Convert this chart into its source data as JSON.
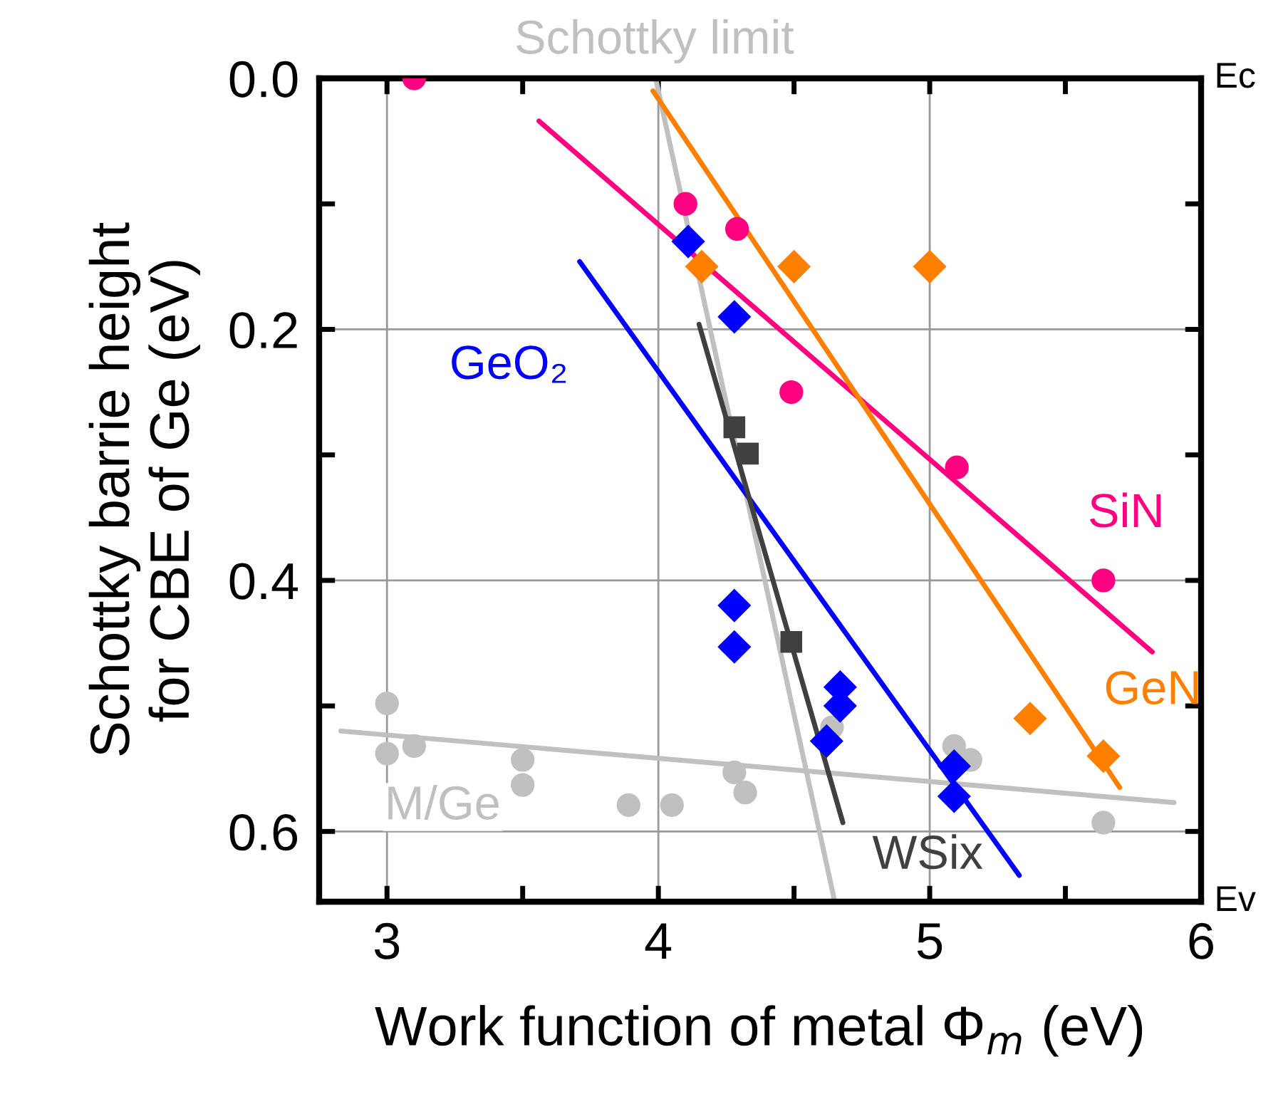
{
  "chart_data": {
    "type": "scatter",
    "xlabel": "Work function of metal Φ$_{m}$ (eV)",
    "ylabel": "Schottky barrie height\nfor CBE of Ge (eV)",
    "xlim": [
      2.75,
      6
    ],
    "ylim": [
      0.656,
      0
    ],
    "xticks": [
      3,
      {
        "value": 3.5,
        "label": null
      },
      4,
      {
        "value": 4.5,
        "label": null
      },
      5,
      {
        "value": 5.5,
        "label": null
      },
      6
    ],
    "yticks": [
      {
        "value": 0,
        "label": "0.0"
      },
      {
        "value": 0.1,
        "label": null
      },
      {
        "value": 0.2,
        "label": "0.2"
      },
      {
        "value": 0.3,
        "label": null
      },
      {
        "value": 0.4,
        "label": "0.4"
      },
      {
        "value": 0.5,
        "label": null
      },
      {
        "value": 0.6,
        "label": "0.6"
      }
    ],
    "grid": true,
    "series": [
      {
        "type": "line",
        "color": "#c0c0c0",
        "x": [
          3.99,
          4.65
        ],
        "values": [
          0,
          0.656
        ]
      },
      {
        "type": "line",
        "color": "#c0c0c0",
        "x": [
          2.83,
          5.9
        ],
        "values": [
          0.52,
          0.577
        ]
      },
      {
        "marker": "circle",
        "color": "#c0c0c0",
        "x": [
          3.0,
          3.0,
          3.1,
          3.5,
          3.5,
          3.89,
          4.05,
          4.28,
          4.32,
          4.64,
          5.09,
          5.15,
          5.64
        ],
        "values": [
          0.498,
          0.538,
          0.532,
          0.543,
          0.563,
          0.579,
          0.579,
          0.553,
          0.569,
          0.517,
          0.532,
          0.543,
          0.593
        ]
      },
      {
        "type": "line",
        "color": "#ff0080",
        "x": [
          3.56,
          5.82
        ],
        "values": [
          0.034,
          0.457
        ]
      },
      {
        "type": "line",
        "color": "#ff8000",
        "x": [
          3.98,
          5.7
        ],
        "values": [
          0.01,
          0.565
        ]
      },
      {
        "type": "line",
        "color": "#0000ff",
        "x": [
          3.71,
          5.33
        ],
        "values": [
          0.146,
          0.635
        ]
      },
      {
        "type": "line",
        "color": "#404040",
        "x": [
          4.15,
          4.68
        ],
        "values": [
          0.196,
          0.593
        ]
      },
      {
        "marker": "circle",
        "color": "#ff0080",
        "x": [
          3.1,
          4.1,
          4.29,
          4.49,
          5.1,
          5.64
        ],
        "values": [
          0,
          0.1,
          0.12,
          0.25,
          0.31,
          0.4
        ]
      },
      {
        "marker": "diamond",
        "color": "#ff8000",
        "x": [
          4.16,
          4.5,
          5.0,
          5.37,
          5.64
        ],
        "values": [
          0.15,
          0.15,
          0.15,
          0.51,
          0.54
        ]
      },
      {
        "marker": "diamond",
        "color": "#0000ff",
        "x": [
          4.11,
          4.28,
          4.28,
          4.28,
          4.67,
          4.67,
          4.62,
          5.09,
          5.09
        ],
        "values": [
          0.13,
          0.19,
          0.42,
          0.453,
          0.485,
          0.5,
          0.528,
          0.548,
          0.572
        ]
      },
      {
        "marker": "square",
        "color": "#404040",
        "x": [
          4.28,
          4.33,
          4.49
        ],
        "values": [
          0.278,
          0.299,
          0.449
        ]
      }
    ],
    "annotations": [
      "Schottky limit",
      "Ec",
      "Ev",
      "GeO₂",
      "SiN",
      "GeN",
      "WSix",
      "M/Ge"
    ]
  }
}
